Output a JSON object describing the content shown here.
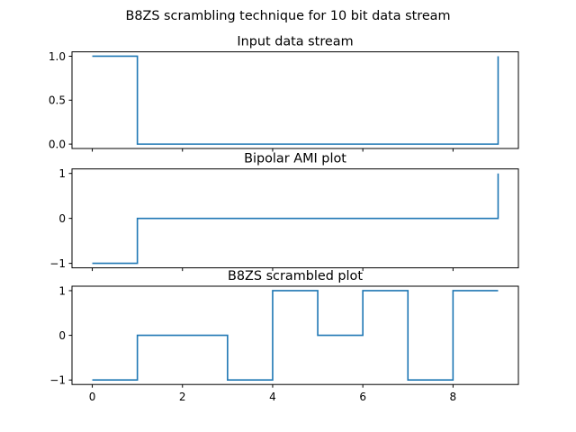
{
  "figure": {
    "suptitle": "B8ZS scrambling technique for 10 bit data stream"
  },
  "colors": {
    "line": "#1f77b4",
    "axes": "#000000",
    "background": "#ffffff"
  },
  "chart_data": [
    {
      "type": "line",
      "drawstyle": "steps-post",
      "title": "Input data stream",
      "x": [
        0,
        1,
        2,
        3,
        4,
        5,
        6,
        7,
        8,
        9
      ],
      "y": [
        1,
        0,
        0,
        0,
        0,
        0,
        0,
        0,
        0,
        1
      ],
      "xlim": [
        -0.45,
        9.45
      ],
      "ylim": [
        -0.05,
        1.05
      ],
      "xticks": [
        0,
        2,
        4,
        6,
        8
      ],
      "show_xticklabels": false,
      "yticks": [
        0.0,
        0.5,
        1.0
      ],
      "ytick_labels": [
        "0.0",
        "0.5",
        "1.0"
      ],
      "grid": false
    },
    {
      "type": "line",
      "drawstyle": "steps-post",
      "title": "Bipolar AMI plot",
      "x": [
        0,
        1,
        2,
        3,
        4,
        5,
        6,
        7,
        8,
        9
      ],
      "y": [
        -1,
        0,
        0,
        0,
        0,
        0,
        0,
        0,
        0,
        1
      ],
      "xlim": [
        -0.45,
        9.45
      ],
      "ylim": [
        -1.1,
        1.1
      ],
      "xticks": [
        0,
        2,
        4,
        6,
        8
      ],
      "show_xticklabels": false,
      "yticks": [
        -1,
        0,
        1
      ],
      "ytick_labels": [
        "−1",
        "0",
        "1"
      ],
      "grid": false
    },
    {
      "type": "line",
      "drawstyle": "steps-post",
      "title": "B8ZS scrambled plot",
      "x": [
        0,
        1,
        2,
        3,
        4,
        5,
        6,
        7,
        8,
        9
      ],
      "y": [
        -1,
        0,
        0,
        -1,
        1,
        0,
        1,
        -1,
        1,
        1
      ],
      "xlim": [
        -0.45,
        9.45
      ],
      "ylim": [
        -1.1,
        1.1
      ],
      "xticks": [
        0,
        2,
        4,
        6,
        8
      ],
      "xtick_labels": [
        "0",
        "2",
        "4",
        "6",
        "8"
      ],
      "show_xticklabels": true,
      "yticks": [
        -1,
        0,
        1
      ],
      "ytick_labels": [
        "−1",
        "0",
        "1"
      ],
      "grid": false
    }
  ]
}
